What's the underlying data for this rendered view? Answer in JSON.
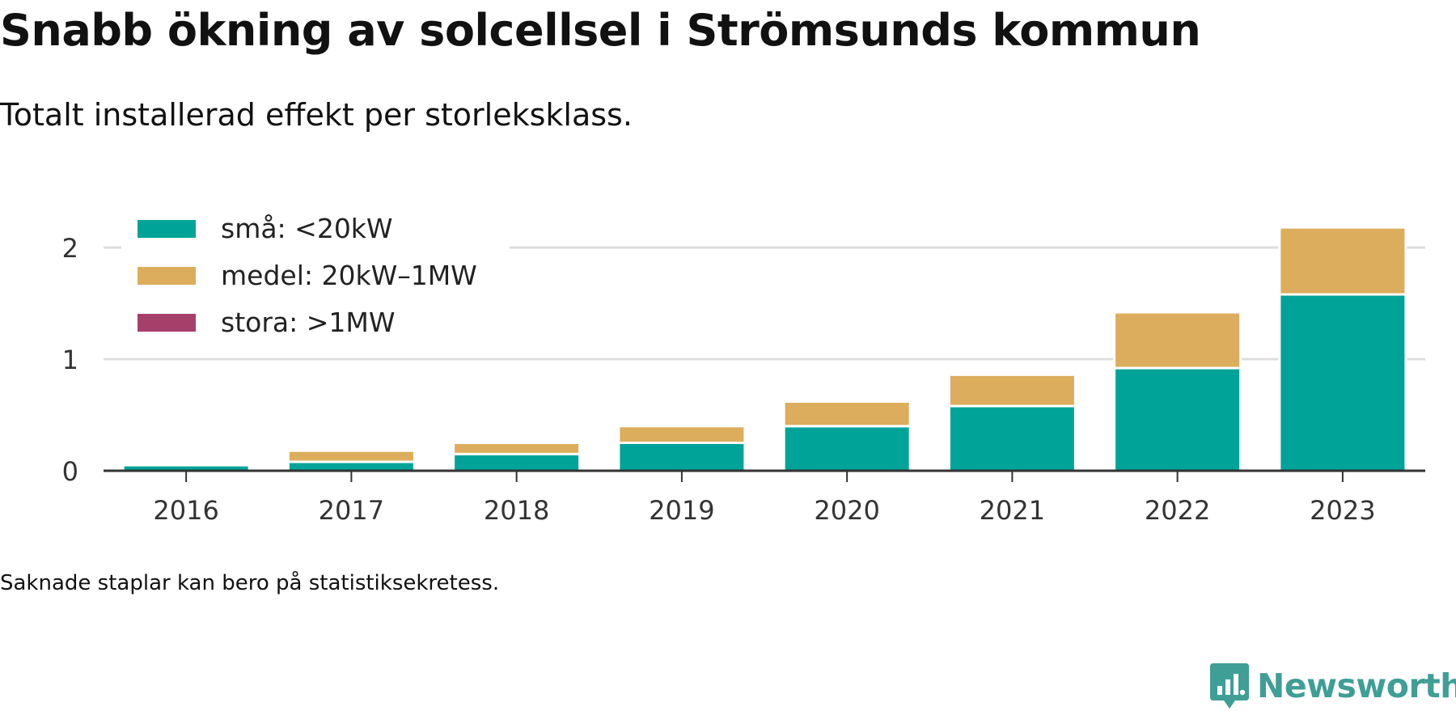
{
  "title": "Snabb ökning av solcellsel i Strömsunds kommun",
  "subtitle": "Totalt installerad effekt per storleksklass.",
  "note": "Saknade staplar kan bero på statistiksekretess.",
  "brand": {
    "name": "Newsworthy",
    "icon": "newsworthy-logo-icon",
    "color": "#3f9e96"
  },
  "chart_data": {
    "type": "bar",
    "stacked": true,
    "categories": [
      "2016",
      "2017",
      "2018",
      "2019",
      "2020",
      "2021",
      "2022",
      "2023"
    ],
    "series": [
      {
        "name": "små: <20kW",
        "color": "#00a398",
        "values": [
          0.05,
          0.08,
          0.15,
          0.25,
          0.4,
          0.58,
          0.92,
          1.58
        ]
      },
      {
        "name": "medel: 20kW–1MW",
        "color": "#dbad5c",
        "values": [
          0.0,
          0.1,
          0.1,
          0.15,
          0.22,
          0.28,
          0.5,
          0.6
        ]
      },
      {
        "name": "stora: >1MW",
        "color": "#a63f6a",
        "values": [
          0,
          0,
          0,
          0,
          0,
          0,
          0,
          0
        ]
      }
    ],
    "yticks": [
      0,
      1,
      2
    ],
    "ylim": [
      0,
      2.2
    ],
    "xlabel": "",
    "ylabel": "",
    "grid": true,
    "legend_position": "top-left"
  }
}
